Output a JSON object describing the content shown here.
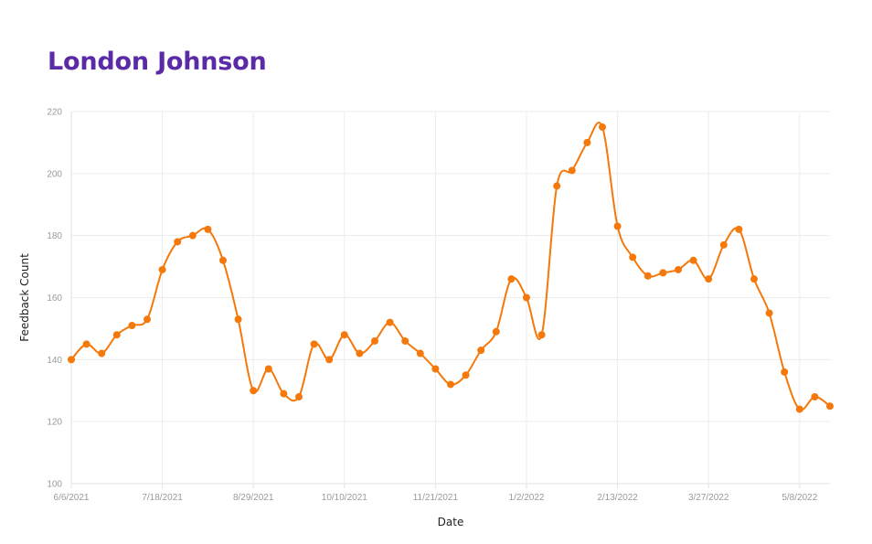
{
  "chart_data": {
    "type": "line",
    "title": "London Johnson",
    "xlabel": "Date",
    "ylabel": "Feedback Count",
    "ylim": [
      100,
      220
    ],
    "y_ticks": [
      100,
      120,
      140,
      160,
      180,
      200,
      220
    ],
    "x_tick_labels": [
      "6/6/2021",
      "7/18/2021",
      "8/29/2021",
      "10/10/2021",
      "11/21/2021",
      "1/2/2022",
      "2/13/2022",
      "3/27/2022",
      "5/8/2022"
    ],
    "x": [
      "6/6/2021",
      "6/13/2021",
      "6/20/2021",
      "6/27/2021",
      "7/4/2021",
      "7/11/2021",
      "7/18/2021",
      "7/25/2021",
      "8/1/2021",
      "8/8/2021",
      "8/15/2021",
      "8/22/2021",
      "8/29/2021",
      "9/5/2021",
      "9/12/2021",
      "9/19/2021",
      "9/26/2021",
      "10/3/2021",
      "10/10/2021",
      "10/17/2021",
      "10/24/2021",
      "10/31/2021",
      "11/7/2021",
      "11/14/2021",
      "11/21/2021",
      "11/28/2021",
      "12/5/2021",
      "12/12/2021",
      "12/19/2021",
      "12/26/2021",
      "1/2/2022",
      "1/9/2022",
      "1/16/2022",
      "1/23/2022",
      "1/30/2022",
      "2/6/2022",
      "2/13/2022",
      "2/20/2022",
      "2/27/2022",
      "3/6/2022",
      "3/13/2022",
      "3/20/2022",
      "3/27/2022",
      "4/3/2022",
      "4/10/2022",
      "4/17/2022",
      "4/24/2022",
      "5/1/2022",
      "5/8/2022",
      "5/15/2022",
      "5/22/2022"
    ],
    "series": [
      {
        "color": "#f5780a",
        "values": [
          140,
          145,
          142,
          148,
          151,
          153,
          169,
          178,
          180,
          182,
          172,
          153,
          130,
          137,
          129,
          128,
          145,
          140,
          148,
          142,
          146,
          152,
          146,
          142,
          137,
          132,
          135,
          143,
          149,
          166,
          160,
          148,
          196,
          201,
          210,
          215,
          183,
          173,
          167,
          168,
          169,
          172,
          166,
          177,
          182,
          166,
          155,
          136,
          124,
          128,
          125
        ]
      }
    ],
    "grid": true,
    "legend": "none"
  }
}
